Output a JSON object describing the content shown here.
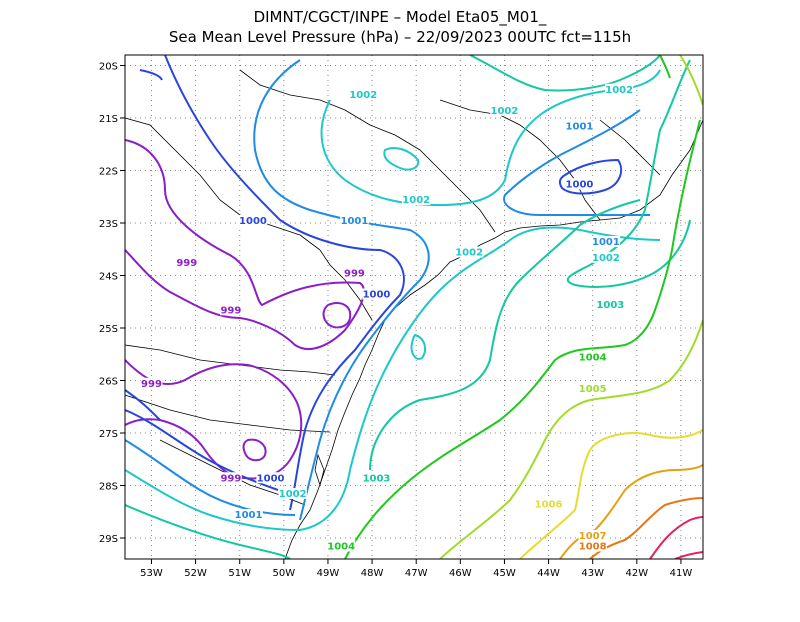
{
  "title": {
    "line1": "DIMNT/CGCT/INPE –  Model Eta05_M01_",
    "line2": "Sea Mean Level Pressure (hPa) – 22/09/2023 00UTC fct=115h"
  },
  "axes": {
    "x_ticks": [
      "53W",
      "52W",
      "51W",
      "50W",
      "49W",
      "48W",
      "47W",
      "46W",
      "45W",
      "44W",
      "43W",
      "42W",
      "41W"
    ],
    "y_ticks": [
      "20S",
      "21S",
      "22S",
      "23S",
      "24S",
      "25S",
      "26S",
      "27S",
      "28S",
      "29S"
    ]
  },
  "chart_data": {
    "type": "contour-map",
    "variable": "Sea Mean Level Pressure (hPa)",
    "xlim": [
      -53.6,
      -40.5
    ],
    "ylim": [
      -29.4,
      -19.8
    ],
    "grid": "dotted",
    "contour_labels": [
      {
        "text": "1002",
        "color": "#1ec8c8",
        "lon": -48.2,
        "lat": -20.6
      },
      {
        "text": "1002",
        "color": "#1ec8c8",
        "lon": -45.0,
        "lat": -20.9
      },
      {
        "text": "1002",
        "color": "#1ec8c8",
        "lon": -42.4,
        "lat": -20.5
      },
      {
        "text": "1001",
        "color": "#1e8ce6",
        "lon": -43.3,
        "lat": -21.2
      },
      {
        "text": "1000",
        "color": "#2846dc",
        "lon": -43.3,
        "lat": -22.3
      },
      {
        "text": "1001",
        "color": "#1e8ce6",
        "lon": -42.7,
        "lat": -23.4
      },
      {
        "text": "1002",
        "color": "#1ec8c8",
        "lon": -42.7,
        "lat": -23.7
      },
      {
        "text": "1003",
        "color": "#14c8a0",
        "lon": -42.6,
        "lat": -24.6
      },
      {
        "text": "1002",
        "color": "#1ec8c8",
        "lon": -47.0,
        "lat": -22.6
      },
      {
        "text": "1002",
        "color": "#1ec8c8",
        "lon": -45.8,
        "lat": -23.6
      },
      {
        "text": "1001",
        "color": "#1e8ce6",
        "lon": -48.4,
        "lat": -23.0
      },
      {
        "text": "1000",
        "color": "#2846dc",
        "lon": -50.7,
        "lat": -23.0
      },
      {
        "text": "1000",
        "color": "#2846dc",
        "lon": -47.9,
        "lat": -24.4
      },
      {
        "text": "999",
        "color": "#8c1ec8",
        "lon": -52.2,
        "lat": -23.8
      },
      {
        "text": "999",
        "color": "#8c1ec8",
        "lon": -48.4,
        "lat": -24.0
      },
      {
        "text": "999",
        "color": "#8c1ec8",
        "lon": -51.2,
        "lat": -24.7
      },
      {
        "text": "999",
        "color": "#8c1ec8",
        "lon": -53.0,
        "lat": -26.1
      },
      {
        "text": "999",
        "color": "#8c1ec8",
        "lon": -51.2,
        "lat": -27.9
      },
      {
        "text": "1000",
        "color": "#2846dc",
        "lon": -50.3,
        "lat": -27.9
      },
      {
        "text": "1001",
        "color": "#1e8ce6",
        "lon": -50.8,
        "lat": -28.6
      },
      {
        "text": "1002",
        "color": "#1ec8c8",
        "lon": -49.8,
        "lat": -28.2
      },
      {
        "text": "1003",
        "color": "#14c8a0",
        "lon": -47.9,
        "lat": -27.9
      },
      {
        "text": "1004",
        "color": "#1ec81e",
        "lon": -48.7,
        "lat": -29.2
      },
      {
        "text": "1004",
        "color": "#1ec81e",
        "lon": -43.0,
        "lat": -25.6
      },
      {
        "text": "1005",
        "color": "#a0dc28",
        "lon": -43.0,
        "lat": -26.2
      },
      {
        "text": "1006",
        "color": "#e6dc32",
        "lon": -44.0,
        "lat": -28.4
      },
      {
        "text": "1007",
        "color": "#e6a014",
        "lon": -43.0,
        "lat": -29.0
      },
      {
        "text": "1008",
        "color": "#e67814",
        "lon": -43.0,
        "lat": -29.2
      }
    ]
  },
  "colors": {
    "c999": "#8c1ec8",
    "c1000": "#2846dc",
    "c1001": "#1e8ce6",
    "c1002": "#1ec8c8",
    "c1003": "#14c8a0",
    "c1004": "#1ec81e",
    "c1005": "#a0dc28",
    "c1006": "#e6dc32",
    "c1007": "#e6a014",
    "c1008": "#e67814",
    "c1010": "#e61e64",
    "border": "#000000"
  }
}
